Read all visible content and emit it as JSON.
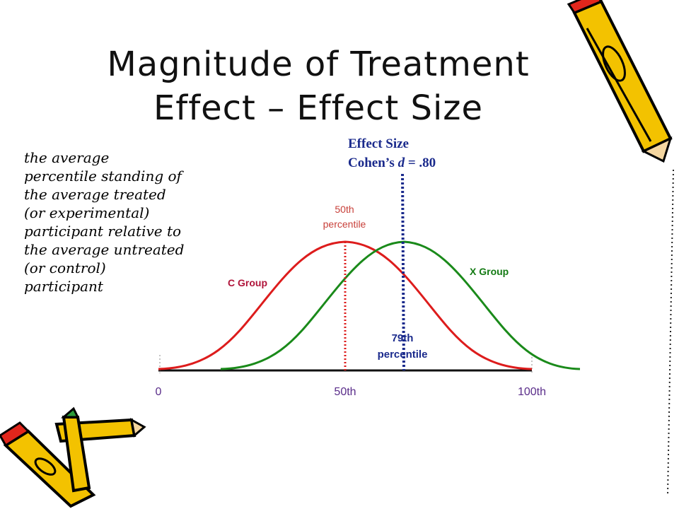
{
  "slide": {
    "title_line1": "Magnitude of Treatment",
    "title_line2": "Effect – Effect Size",
    "side_text": [
      "the average",
      "percentile standing of",
      "the average treated",
      "(or experimental)",
      "participant relative to",
      "the average untreated",
      "(or control)",
      "participant"
    ]
  },
  "effect_size": {
    "line1": "Effect Size",
    "line2_prefix": "Cohen’s ",
    "line2_var": "d",
    "line2_suffix": " = .80"
  },
  "diagram": {
    "c_group_label": "C Group",
    "x_group_label": "X Group",
    "fiftieth_label_line1": "50th",
    "fiftieth_label_line2": "percentile",
    "seventy_ninth_label_line1": "79th",
    "seventy_ninth_label_line2": "percentile",
    "axis_labels": [
      "0",
      "50th",
      "100th"
    ],
    "colors": {
      "c_group": "#dd1c1c",
      "x_group": "#1a8a1a",
      "effect_line": "#1a2a8c",
      "c_label": "#b0143a",
      "x_label": "#137a13",
      "percentile_50": "#c8403a"
    }
  }
}
